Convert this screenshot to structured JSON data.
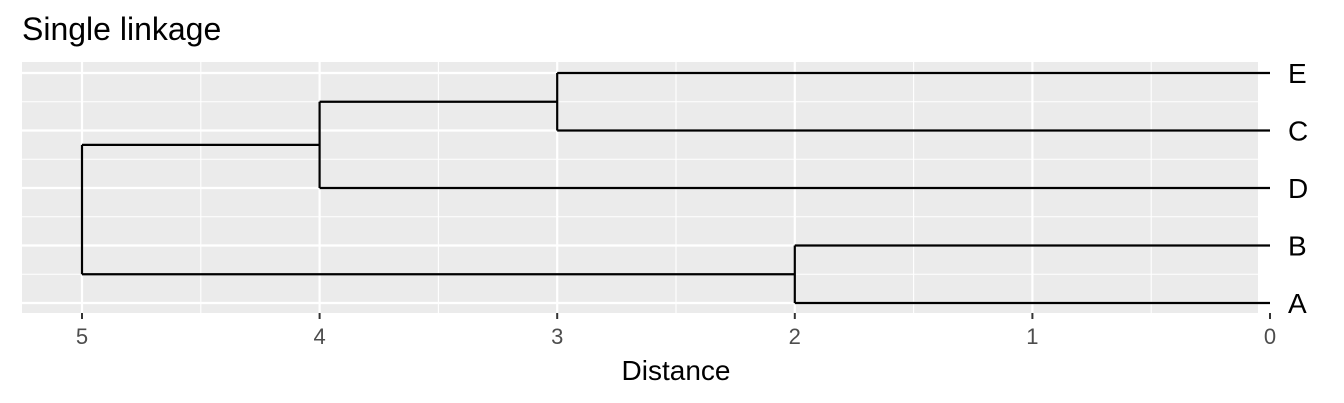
{
  "chart_data": {
    "type": "dendrogram",
    "title": "Single linkage",
    "xlabel": "Distance",
    "ylabel": "",
    "x_reversed": true,
    "xlim": [
      5.25,
      0
    ],
    "x_ticks": [
      5,
      4,
      3,
      2,
      1,
      0
    ],
    "x_tick_labels": [
      "5",
      "4",
      "3",
      "2",
      "1",
      "0"
    ],
    "grid": true,
    "leaves_top_to_bottom": [
      "E",
      "C",
      "D",
      "B",
      "A"
    ],
    "merges": [
      {
        "id": "m1",
        "left": "E",
        "right": "C",
        "height": 3
      },
      {
        "id": "m2",
        "left": "m1",
        "right": "D",
        "height": 4
      },
      {
        "id": "m3",
        "left": "B",
        "right": "A",
        "height": 2
      },
      {
        "id": "m4",
        "left": "m2",
        "right": "m3",
        "height": 5
      }
    ],
    "colors": {
      "panel_background": "#ebebeb",
      "grid_line": "#ffffff",
      "branch": "#000000",
      "tick_text": "#4d4d4d"
    }
  }
}
